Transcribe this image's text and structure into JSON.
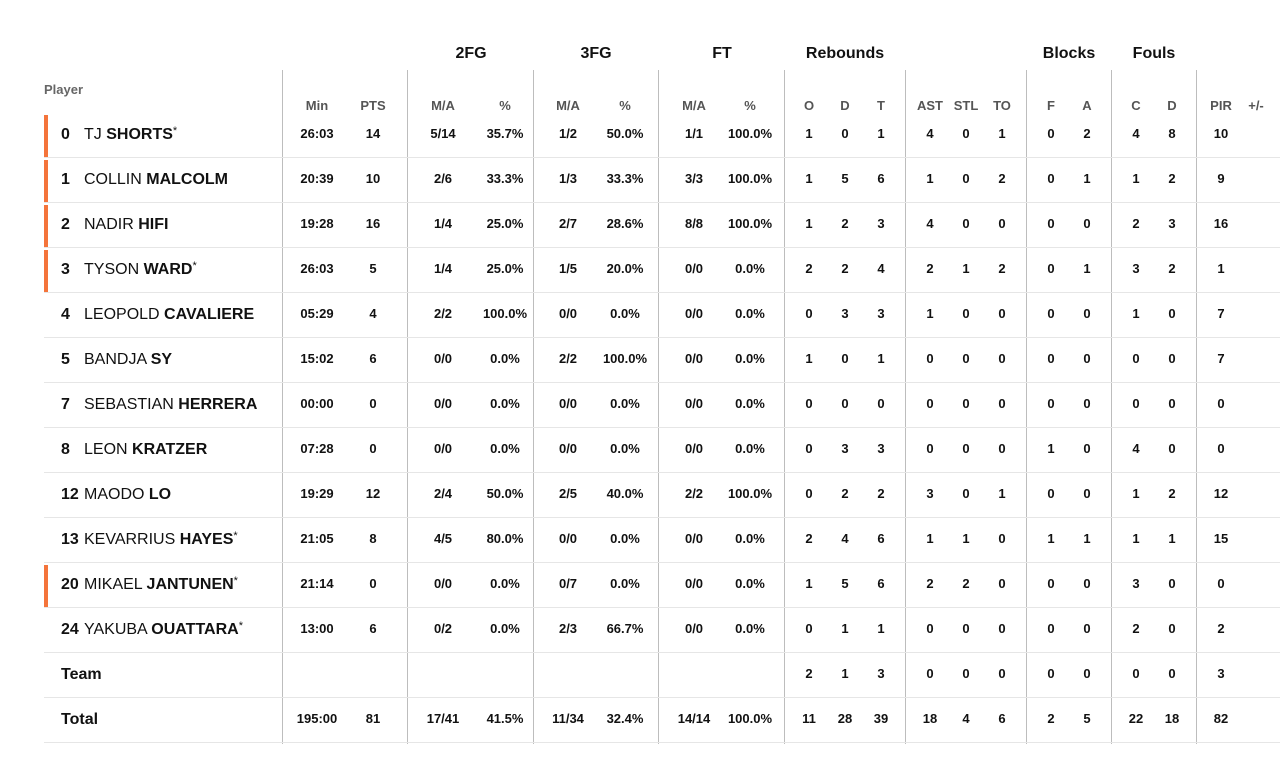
{
  "header": {
    "player": "Player",
    "groups": [
      {
        "key": "2fg",
        "label": "2FG"
      },
      {
        "key": "3fg",
        "label": "3FG"
      },
      {
        "key": "ft",
        "label": "FT"
      },
      {
        "key": "rebounds",
        "label": "Rebounds"
      },
      {
        "key": "blocks",
        "label": "Blocks"
      },
      {
        "key": "fouls",
        "label": "Fouls"
      }
    ],
    "columns": [
      "Min",
      "PTS",
      "M/A",
      "%",
      "M/A",
      "%",
      "M/A",
      "%",
      "O",
      "D",
      "T",
      "AST",
      "STL",
      "TO",
      "F",
      "A",
      "C",
      "D",
      "PIR",
      "+/-"
    ]
  },
  "colors": {
    "accent": "#f4743b",
    "grid": "#bdbdbd",
    "separator": "#e6e6e6"
  },
  "players": [
    {
      "num": "0",
      "first": "TJ",
      "last": "SHORTS",
      "star": "*",
      "accent": true,
      "stats": [
        "26:03",
        "14",
        "5/14",
        "35.7%",
        "1/2",
        "50.0%",
        "1/1",
        "100.0%",
        "1",
        "0",
        "1",
        "4",
        "0",
        "1",
        "0",
        "2",
        "4",
        "8",
        "10",
        ""
      ]
    },
    {
      "num": "1",
      "first": "COLLIN",
      "last": "MALCOLM",
      "star": "",
      "accent": true,
      "stats": [
        "20:39",
        "10",
        "2/6",
        "33.3%",
        "1/3",
        "33.3%",
        "3/3",
        "100.0%",
        "1",
        "5",
        "6",
        "1",
        "0",
        "2",
        "0",
        "1",
        "1",
        "2",
        "9",
        ""
      ]
    },
    {
      "num": "2",
      "first": "NADIR",
      "last": "HIFI",
      "star": "",
      "accent": true,
      "stats": [
        "19:28",
        "16",
        "1/4",
        "25.0%",
        "2/7",
        "28.6%",
        "8/8",
        "100.0%",
        "1",
        "2",
        "3",
        "4",
        "0",
        "0",
        "0",
        "0",
        "2",
        "3",
        "16",
        ""
      ]
    },
    {
      "num": "3",
      "first": "TYSON",
      "last": "WARD",
      "star": "*",
      "accent": true,
      "stats": [
        "26:03",
        "5",
        "1/4",
        "25.0%",
        "1/5",
        "20.0%",
        "0/0",
        "0.0%",
        "2",
        "2",
        "4",
        "2",
        "1",
        "2",
        "0",
        "1",
        "3",
        "2",
        "1",
        ""
      ]
    },
    {
      "num": "4",
      "first": "LEOPOLD",
      "last": "CAVALIERE",
      "star": "",
      "accent": false,
      "stats": [
        "05:29",
        "4",
        "2/2",
        "100.0%",
        "0/0",
        "0.0%",
        "0/0",
        "0.0%",
        "0",
        "3",
        "3",
        "1",
        "0",
        "0",
        "0",
        "0",
        "1",
        "0",
        "7",
        ""
      ]
    },
    {
      "num": "5",
      "first": "BANDJA",
      "last": "SY",
      "star": "",
      "accent": false,
      "stats": [
        "15:02",
        "6",
        "0/0",
        "0.0%",
        "2/2",
        "100.0%",
        "0/0",
        "0.0%",
        "1",
        "0",
        "1",
        "0",
        "0",
        "0",
        "0",
        "0",
        "0",
        "0",
        "7",
        ""
      ]
    },
    {
      "num": "7",
      "first": "SEBASTIAN",
      "last": "HERRERA",
      "star": "",
      "accent": false,
      "stats": [
        "00:00",
        "0",
        "0/0",
        "0.0%",
        "0/0",
        "0.0%",
        "0/0",
        "0.0%",
        "0",
        "0",
        "0",
        "0",
        "0",
        "0",
        "0",
        "0",
        "0",
        "0",
        "0",
        ""
      ]
    },
    {
      "num": "8",
      "first": "LEON",
      "last": "KRATZER",
      "star": "",
      "accent": false,
      "stats": [
        "07:28",
        "0",
        "0/0",
        "0.0%",
        "0/0",
        "0.0%",
        "0/0",
        "0.0%",
        "0",
        "3",
        "3",
        "0",
        "0",
        "0",
        "1",
        "0",
        "4",
        "0",
        "0",
        ""
      ]
    },
    {
      "num": "12",
      "first": "MAODO",
      "last": "LO",
      "star": "",
      "accent": false,
      "stats": [
        "19:29",
        "12",
        "2/4",
        "50.0%",
        "2/5",
        "40.0%",
        "2/2",
        "100.0%",
        "0",
        "2",
        "2",
        "3",
        "0",
        "1",
        "0",
        "0",
        "1",
        "2",
        "12",
        ""
      ]
    },
    {
      "num": "13",
      "first": "KEVARRIUS",
      "last": "HAYES",
      "star": "*",
      "accent": false,
      "stats": [
        "21:05",
        "8",
        "4/5",
        "80.0%",
        "0/0",
        "0.0%",
        "0/0",
        "0.0%",
        "2",
        "4",
        "6",
        "1",
        "1",
        "0",
        "1",
        "1",
        "1",
        "1",
        "15",
        ""
      ]
    },
    {
      "num": "20",
      "first": "MIKAEL",
      "last": "JANTUNEN",
      "star": "*",
      "accent": true,
      "stats": [
        "21:14",
        "0",
        "0/0",
        "0.0%",
        "0/7",
        "0.0%",
        "0/0",
        "0.0%",
        "1",
        "5",
        "6",
        "2",
        "2",
        "0",
        "0",
        "0",
        "3",
        "0",
        "0",
        ""
      ]
    },
    {
      "num": "24",
      "first": "YAKUBA",
      "last": "OUATTARA",
      "star": "*",
      "accent": false,
      "stats": [
        "13:00",
        "6",
        "0/2",
        "0.0%",
        "2/3",
        "66.7%",
        "0/0",
        "0.0%",
        "0",
        "1",
        "1",
        "0",
        "0",
        "0",
        "0",
        "0",
        "2",
        "0",
        "2",
        ""
      ]
    }
  ],
  "team": {
    "label": "Team",
    "stats": [
      "",
      "",
      "",
      "",
      "",
      "",
      "",
      "",
      "2",
      "1",
      "3",
      "0",
      "0",
      "0",
      "0",
      "0",
      "0",
      "0",
      "3",
      ""
    ]
  },
  "total": {
    "label": "Total",
    "stats": [
      "195:00",
      "81",
      "17/41",
      "41.5%",
      "11/34",
      "32.4%",
      "14/14",
      "100.0%",
      "11",
      "28",
      "39",
      "18",
      "4",
      "6",
      "2",
      "5",
      "22",
      "18",
      "82",
      ""
    ]
  }
}
